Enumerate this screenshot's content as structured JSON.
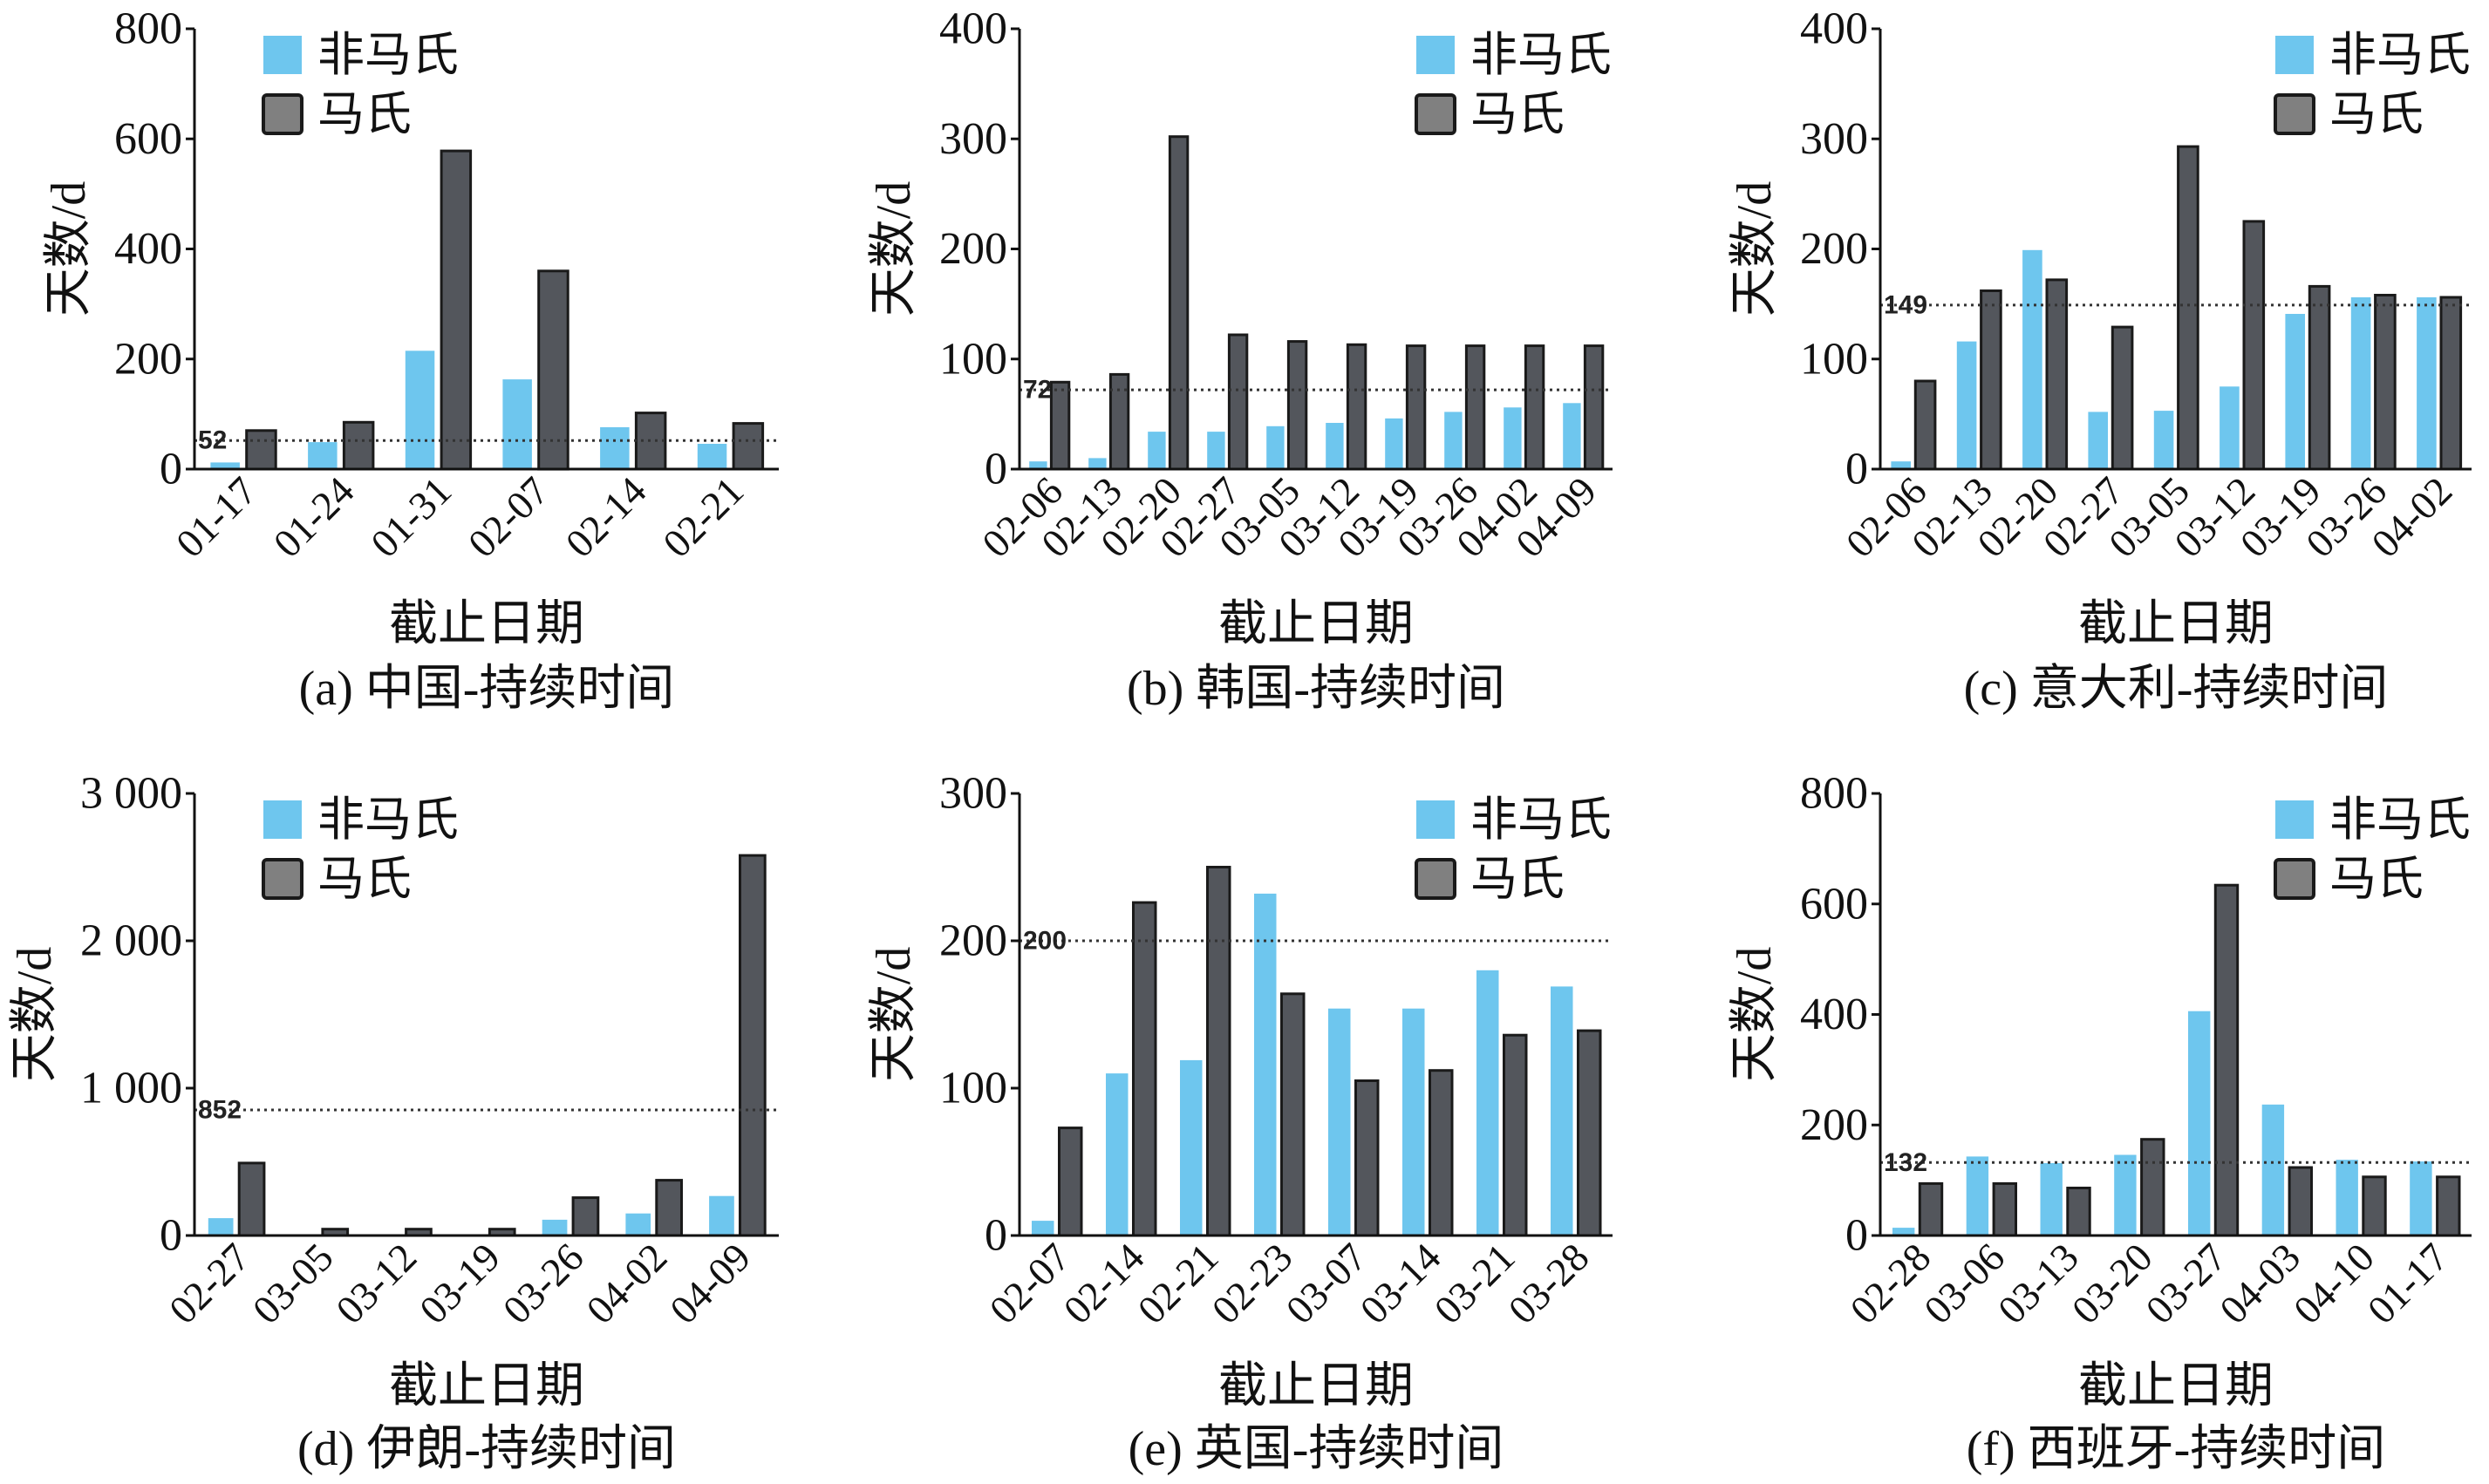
{
  "colors": {
    "non_mahalanobis": "#6ec6ee",
    "mahalanobis": "#53565c",
    "mahalanobis_legend": "#808080",
    "outline": "#1a1a1a",
    "reference_line": "#333333",
    "axis": "#111111"
  },
  "chart_data": [
    {
      "type": "bar",
      "title": "(a) 中国-持续时间",
      "xlabel": "截止日期",
      "ylabel": "天数/d",
      "ylim": [
        0,
        800
      ],
      "yticks": [
        0,
        200,
        400,
        600,
        800
      ],
      "ytick_labels": [
        "0",
        "200",
        "400",
        "600",
        "800"
      ],
      "grid": false,
      "legend": "top-left",
      "categories": [
        "01-17",
        "01-24",
        "01-31",
        "02-07",
        "02-14",
        "02-21"
      ],
      "series": [
        {
          "name": "非马氏",
          "values": [
            12,
            49,
            215,
            163,
            76,
            46
          ]
        },
        {
          "name": "马氏",
          "values": [
            70,
            85,
            578,
            360,
            102,
            83
          ]
        }
      ],
      "reference_line": {
        "value": 52,
        "label": "52"
      }
    },
    {
      "type": "bar",
      "title": "(b) 韩国-持续时间",
      "xlabel": "截止日期",
      "ylabel": "天数/d",
      "ylim": [
        0,
        400
      ],
      "yticks": [
        0,
        100,
        200,
        300,
        400
      ],
      "ytick_labels": [
        "0",
        "100",
        "200",
        "300",
        "400"
      ],
      "grid": false,
      "legend": "top-right",
      "categories": [
        "02-06",
        "02-13",
        "02-20",
        "02-27",
        "03-05",
        "03-12",
        "03-19",
        "03-26",
        "04-02",
        "04-09"
      ],
      "series": [
        {
          "name": "非马氏",
          "values": [
            7,
            10,
            34,
            34,
            39,
            42,
            46,
            52,
            56,
            60
          ]
        },
        {
          "name": "马氏",
          "values": [
            79,
            86,
            302,
            122,
            116,
            113,
            112,
            112,
            112,
            112
          ]
        }
      ],
      "reference_line": {
        "value": 72,
        "label": "72"
      }
    },
    {
      "type": "bar",
      "title": "(c) 意大利-持续时间",
      "xlabel": "截止日期",
      "ylabel": "天数/d",
      "ylim": [
        0,
        400
      ],
      "yticks": [
        0,
        100,
        200,
        300,
        400
      ],
      "ytick_labels": [
        "0",
        "100",
        "200",
        "300",
        "400"
      ],
      "grid": false,
      "legend": "top-right",
      "categories": [
        "02-06",
        "02-13",
        "02-20",
        "02-27",
        "03-05",
        "03-12",
        "03-19",
        "03-26",
        "04-02"
      ],
      "series": [
        {
          "name": "非马氏",
          "values": [
            7,
            116,
            199,
            52,
            53,
            75,
            141,
            156,
            156
          ]
        },
        {
          "name": "马氏",
          "values": [
            80,
            162,
            172,
            129,
            293,
            225,
            166,
            158,
            156
          ]
        }
      ],
      "reference_line": {
        "value": 149,
        "label": "149"
      }
    },
    {
      "type": "bar",
      "title": "(d) 伊朗-持续时间",
      "xlabel": "截止日期",
      "ylabel": "天数/d",
      "ylim": [
        0,
        3000
      ],
      "yticks": [
        0,
        1000,
        2000,
        3000
      ],
      "ytick_labels": [
        "0",
        "1 000",
        "2 000",
        "3 000"
      ],
      "grid": false,
      "legend": "top-left",
      "categories": [
        "02-27",
        "03-05",
        "03-12",
        "03-19",
        "03-26",
        "04-02",
        "04-09"
      ],
      "series": [
        {
          "name": "非马氏",
          "values": [
            118,
            0,
            0,
            0,
            107,
            150,
            268
          ]
        },
        {
          "name": "马氏",
          "values": [
            492,
            43,
            43,
            43,
            257,
            375,
            2579
          ]
        }
      ],
      "reference_line": {
        "value": 852,
        "label": "852"
      }
    },
    {
      "type": "bar",
      "title": "(e) 英国-持续时间",
      "xlabel": "截止日期",
      "ylabel": "天数/d",
      "ylim": [
        0,
        300
      ],
      "yticks": [
        0,
        100,
        200,
        300
      ],
      "ytick_labels": [
        "0",
        "100",
        "200",
        "300"
      ],
      "grid": false,
      "legend": "top-right",
      "categories": [
        "02-07",
        "02-14",
        "02-21",
        "02-23",
        "03-07",
        "03-14",
        "03-21",
        "03-28"
      ],
      "series": [
        {
          "name": "非马氏",
          "values": [
            10,
            110,
            119,
            232,
            154,
            154,
            180,
            169
          ]
        },
        {
          "name": "马氏",
          "values": [
            73,
            226,
            250,
            164,
            105,
            112,
            136,
            139
          ]
        }
      ],
      "reference_line": {
        "value": 200,
        "label": "200"
      }
    },
    {
      "type": "bar",
      "title": "(f) 西班牙-持续时间",
      "xlabel": "截止日期",
      "ylabel": "天数/d",
      "ylim": [
        0,
        800
      ],
      "yticks": [
        0,
        200,
        400,
        600,
        800
      ],
      "ytick_labels": [
        "0",
        "200",
        "400",
        "600",
        "800"
      ],
      "grid": false,
      "legend": "top-right",
      "categories": [
        "02-28",
        "03-06",
        "03-13",
        "03-20",
        "03-27",
        "04-03",
        "04-10",
        "01-17"
      ],
      "series": [
        {
          "name": "非马氏",
          "values": [
            14,
            143,
            131,
            146,
            406,
            237,
            137,
            134
          ]
        },
        {
          "name": "马氏",
          "values": [
            94,
            94,
            86,
            174,
            634,
            123,
            106,
            106
          ]
        }
      ],
      "reference_line": {
        "value": 132,
        "label": "132"
      }
    }
  ]
}
